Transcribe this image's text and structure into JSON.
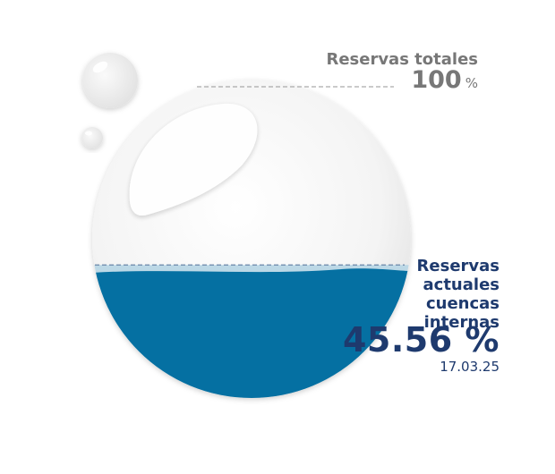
{
  "chart_data": {
    "type": "liquid-gauge",
    "total": {
      "title": "Reservas totales",
      "value": 100,
      "unit": "%"
    },
    "current": {
      "title": "Reservas actuales cuencas internas",
      "value": 45.56,
      "value_label": "45.56 %",
      "date": "17.03.25"
    }
  },
  "colors": {
    "water": "#0570a2",
    "water_surface": "#bcd8e6",
    "total_text": "#777777",
    "current_text": "#1e3a6e",
    "dashed_line": "#aaaaaa",
    "current_dashed_line": "#6a86a8"
  }
}
